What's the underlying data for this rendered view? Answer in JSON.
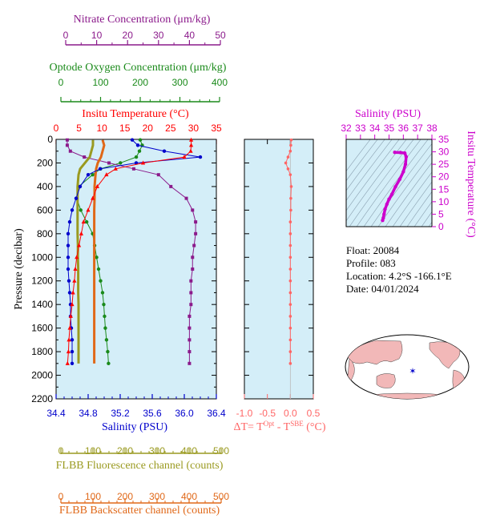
{
  "colors": {
    "nitrate": "#8b1a8b",
    "oxygen": "#1a8a1a",
    "temperature": "#ff0000",
    "salinity": "#0000cc",
    "fluorescence": "#9a9a20",
    "backscatter": "#e06818",
    "delta_t": "#ff6666",
    "salinity_ts": "#cc00cc",
    "plot_bg": "#d4eef8",
    "land": "#f2b8b8"
  },
  "main_panel": {
    "y_label": "Pressure (decibar)",
    "y_ticks": [
      "0",
      "200",
      "400",
      "600",
      "800",
      "1000",
      "1200",
      "1400",
      "1600",
      "1800",
      "2000",
      "2200"
    ],
    "y_range": [
      0,
      2200
    ]
  },
  "axes": {
    "nitrate": {
      "title": "Nitrate Concentration (μm/kg)",
      "ticks": [
        "0",
        "10",
        "20",
        "30",
        "40",
        "50"
      ],
      "range": [
        0,
        50
      ]
    },
    "oxygen": {
      "title": "Optode Oxygen Concentration (μm/kg)",
      "ticks": [
        "0",
        "100",
        "200",
        "300",
        "400"
      ],
      "range": [
        0,
        400
      ]
    },
    "temperature": {
      "title": "Insitu Temperature (°C)",
      "ticks": [
        "0",
        "5",
        "10",
        "15",
        "20",
        "25",
        "30",
        "35"
      ],
      "range": [
        0,
        35
      ]
    },
    "salinity": {
      "title": "Salinity (PSU)",
      "ticks": [
        "34.4",
        "34.8",
        "35.2",
        "35.6",
        "36.0",
        "36.4"
      ],
      "range": [
        34.4,
        36.4
      ]
    },
    "fluorescence": {
      "title": "FLBB Fluorescence channel (counts)",
      "ticks": [
        "0",
        "100",
        "200",
        "300",
        "400",
        "500"
      ],
      "range": [
        0,
        500
      ]
    },
    "backscatter": {
      "title": "FLBB Backscatter channel (counts)",
      "ticks": [
        "0",
        "100",
        "200",
        "300",
        "400",
        "500"
      ],
      "range": [
        0,
        500
      ]
    },
    "delta_t": {
      "title_prefix": "ΔT= T",
      "sup1": "Opt",
      "mid": " - T",
      "sup2": "SBE",
      "suffix": " (°C)",
      "ticks": [
        "-1.0",
        "-0.5",
        "0.0",
        "0.5"
      ],
      "range": [
        -1.0,
        0.5
      ]
    },
    "ts_salinity": {
      "title": "Salinity (PSU)",
      "ticks": [
        "32",
        "33",
        "34",
        "35",
        "36",
        "37",
        "38"
      ],
      "range": [
        32,
        38
      ]
    },
    "ts_temperature": {
      "title": "Insitu Temperature (°C)",
      "ticks": [
        "0",
        "5",
        "10",
        "15",
        "20",
        "25",
        "30",
        "35"
      ],
      "range": [
        0,
        35
      ]
    }
  },
  "info": {
    "float": "Float:  20084",
    "profile": "Profile:  083",
    "location": "Location:  4.2°S  -166.1°E",
    "date": "Date:  04/01/2024"
  },
  "chart_data": {
    "type": "line",
    "pressure": [
      5,
      50,
      100,
      150,
      200,
      250,
      300,
      400,
      500,
      600,
      700,
      800,
      900,
      1000,
      1100,
      1200,
      1300,
      1400,
      1500,
      1600,
      1700,
      1800,
      1900
    ],
    "series": [
      {
        "name": "Nitrate",
        "values": [
          0.5,
          0.5,
          1.5,
          6,
          14,
          22,
          30,
          34,
          39,
          41,
          42,
          42,
          41.5,
          41,
          41,
          40.5,
          40.5,
          40.5,
          40,
          40,
          40,
          40,
          40
        ]
      },
      {
        "name": "Oxygen",
        "values": [
          200,
          205,
          198,
          190,
          150,
          100,
          80,
          45,
          40,
          50,
          65,
          80,
          85,
          90,
          95,
          100,
          105,
          108,
          110,
          112,
          115,
          118,
          120
        ]
      },
      {
        "name": "Temperature",
        "values": [
          29.5,
          29.5,
          29.4,
          28,
          19,
          13,
          11,
          9,
          8,
          7,
          6,
          5.5,
          5,
          4.5,
          4.2,
          4,
          3.7,
          3.5,
          3.2,
          3,
          2.8,
          2.7,
          2.5
        ]
      },
      {
        "name": "Salinity",
        "values": [
          35.35,
          35.42,
          35.75,
          36.2,
          35.4,
          34.95,
          34.8,
          34.7,
          34.65,
          34.6,
          34.57,
          34.55,
          34.55,
          34.55,
          34.55,
          34.56,
          34.57,
          34.58,
          34.58,
          34.59,
          34.6,
          34.6,
          34.6
        ]
      },
      {
        "name": "Fluorescence",
        "values": [
          100,
          100,
          95,
          90,
          75,
          60,
          55,
          52,
          52,
          52,
          52,
          52,
          53,
          53,
          54,
          54,
          54,
          55,
          55,
          55,
          55,
          55,
          55
        ]
      },
      {
        "name": "Backscatter",
        "values": [
          130,
          135,
          130,
          125,
          115,
          110,
          108,
          105,
          105,
          104,
          104,
          104,
          104,
          104,
          104,
          104,
          104,
          104,
          104,
          104,
          104,
          104,
          104
        ]
      },
      {
        "name": "Delta T",
        "values": [
          0.02,
          0.01,
          0.0,
          -0.05,
          -0.1,
          -0.05,
          0.0,
          0.02,
          0.01,
          0.01,
          0.0,
          0.0,
          0.0,
          0.0,
          0.0,
          0.0,
          0.0,
          0.0,
          0.0,
          0.0,
          0.0,
          0.0,
          0.0
        ]
      }
    ],
    "ts_diagram": {
      "salinity": [
        34.55,
        34.6,
        34.65,
        34.72,
        34.85,
        35.0,
        35.2,
        35.45,
        35.75,
        36.0,
        36.15,
        36.2,
        36.1,
        35.8,
        35.4
      ],
      "temperature": [
        2.5,
        3.5,
        5,
        7,
        9,
        11,
        13,
        16,
        19,
        22,
        25,
        28,
        29.5,
        29.7,
        29.8
      ]
    },
    "float_position": {
      "lat": -4.2,
      "lon": -166.1
    }
  }
}
